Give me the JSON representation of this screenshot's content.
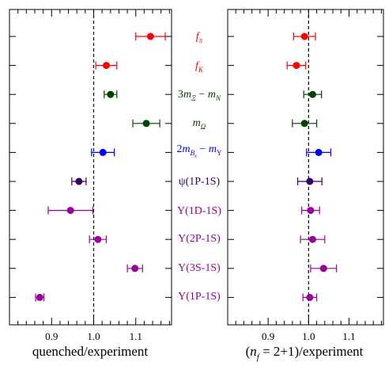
{
  "chart_data": [
    {
      "type": "scatter",
      "panel": "left",
      "xlabel": "quenched/experiment",
      "xlim": [
        0.8,
        1.185
      ],
      "xticks": [
        "0.9",
        "1.0",
        "1.1"
      ],
      "reference_line": 1.0,
      "grid": false,
      "points": [
        {
          "label": "fπ",
          "value": 1.135,
          "err": 0.035,
          "color": "#ff0000"
        },
        {
          "label": "fK",
          "value": 1.03,
          "err": 0.025,
          "color": "#ff0000"
        },
        {
          "label": "3mΞ − mN",
          "value": 1.04,
          "err": 0.015,
          "color": "#004400"
        },
        {
          "label": "mΩ",
          "value": 1.125,
          "err": 0.032,
          "color": "#004400"
        },
        {
          "label": "2mBs − mΥ",
          "value": 1.022,
          "err": 0.027,
          "color": "#0000ff"
        },
        {
          "label": "ψ(1P-1S)",
          "value": 0.965,
          "err": 0.017,
          "color": "#330066"
        },
        {
          "label": "Υ(1D-1S)",
          "value": 0.945,
          "err": 0.053,
          "color": "#990099"
        },
        {
          "label": "Υ(2P-1S)",
          "value": 1.01,
          "err": 0.02,
          "color": "#990099"
        },
        {
          "label": "Υ(3S-1S)",
          "value": 1.098,
          "err": 0.018,
          "color": "#990099"
        },
        {
          "label": "Υ(1P-1S)",
          "value": 0.872,
          "err": 0.01,
          "color": "#990099"
        }
      ]
    },
    {
      "type": "scatter",
      "panel": "right",
      "xlabel": "(nf = 2+1)/experiment",
      "xlim": [
        0.8,
        1.185
      ],
      "xticks": [
        "0.9",
        "1.0",
        "1.1"
      ],
      "reference_line": 1.0,
      "grid": false,
      "points": [
        {
          "label": "fπ",
          "value": 0.99,
          "err": 0.027,
          "color": "#ff0000"
        },
        {
          "label": "fK",
          "value": 0.97,
          "err": 0.023,
          "color": "#ff0000"
        },
        {
          "label": "3mΞ − mN",
          "value": 1.01,
          "err": 0.022,
          "color": "#004400"
        },
        {
          "label": "mΩ",
          "value": 0.99,
          "err": 0.03,
          "color": "#004400"
        },
        {
          "label": "2mBs − mΥ",
          "value": 1.025,
          "err": 0.03,
          "color": "#0000ff"
        },
        {
          "label": "ψ(1P-1S)",
          "value": 1.003,
          "err": 0.03,
          "color": "#330066"
        },
        {
          "label": "Υ(1D-1S)",
          "value": 1.005,
          "err": 0.022,
          "color": "#990099"
        },
        {
          "label": "Υ(2P-1S)",
          "value": 1.01,
          "err": 0.03,
          "color": "#990099"
        },
        {
          "label": "Υ(3S-1S)",
          "value": 1.037,
          "err": 0.032,
          "color": "#990099"
        },
        {
          "label": "Υ(1P-1S)",
          "value": 1.003,
          "err": 0.017,
          "color": "#990099"
        }
      ]
    }
  ],
  "labels": [
    {
      "key": "fpi",
      "main": "f",
      "sub": "π",
      "color": "#ff0000"
    },
    {
      "key": "fk",
      "main": "f",
      "sub": "K",
      "color": "#ff0000"
    },
    {
      "key": "xi",
      "color": "#004400"
    },
    {
      "key": "omega",
      "main": "m",
      "sub": "Ω",
      "color": "#004400"
    },
    {
      "key": "bs",
      "color": "#0000ff"
    },
    {
      "key": "psi",
      "text": "ψ(1P-1S)",
      "color": "#330066"
    },
    {
      "key": "y1d",
      "text": "Υ(1D-1S)",
      "color": "#990099"
    },
    {
      "key": "y2p",
      "text": "Υ(2P-1S)",
      "color": "#990099"
    },
    {
      "key": "y3s",
      "text": "Υ(3S-1S)",
      "color": "#990099"
    },
    {
      "key": "y1p",
      "text": "Υ(1P-1S)",
      "color": "#990099"
    }
  ],
  "label_parts": {
    "xi_3": "3",
    "xi_m1": "m",
    "xi_s1": "Ξ",
    "xi_minus": " − ",
    "xi_m2": "m",
    "xi_s2": "N",
    "bs_2": "2",
    "bs_m1": "m",
    "bs_s1": "B",
    "bs_ss": "s",
    "bs_minus": " − ",
    "bs_m2": "m",
    "bs_s2": "Υ",
    "xr_open": "(",
    "xr_n": "n",
    "xr_sub": "f",
    "xr_rest": " = 2+1)/experiment"
  }
}
